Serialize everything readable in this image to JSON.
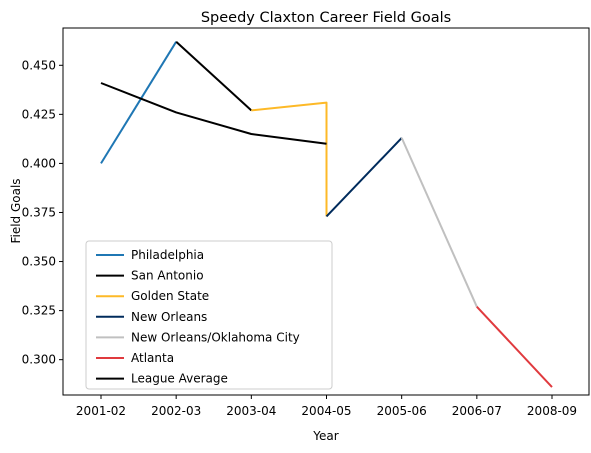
{
  "chart_data": {
    "type": "line",
    "title": "Speedy Claxton Career Field Goals",
    "xlabel": "Year",
    "ylabel": "Field Goals",
    "categories": [
      "2001-02",
      "2002-03",
      "2003-04",
      "2004-05",
      "2005-06",
      "2006-07",
      "2008-09"
    ],
    "ylim": [
      0.282,
      0.469
    ],
    "yticks": [
      "0.300",
      "0.325",
      "0.350",
      "0.375",
      "0.400",
      "0.425",
      "0.450"
    ],
    "grid": false,
    "legend_position": "lower-left",
    "series": [
      {
        "name": "Philadelphia",
        "color": "#1f77b4",
        "x": [
          "2001-02",
          "2002-03"
        ],
        "values": [
          0.4,
          0.462
        ]
      },
      {
        "name": "San Antonio",
        "color": "#000000",
        "x": [
          "2002-03",
          "2003-04"
        ],
        "values": [
          0.462,
          0.427
        ]
      },
      {
        "name": "Golden State",
        "color": "#fdb927",
        "x": [
          "2003-04",
          "2004-05",
          "2004-05"
        ],
        "values": [
          0.427,
          0.431,
          0.373
        ]
      },
      {
        "name": "New Orleans",
        "color": "#002b5c",
        "x": [
          "2004-05",
          "2005-06"
        ],
        "values": [
          0.373,
          0.413
        ]
      },
      {
        "name": "New Orleans/Oklahoma City",
        "color": "#c0c0c0",
        "x": [
          "2005-06",
          "2006-07"
        ],
        "values": [
          0.413,
          0.327
        ]
      },
      {
        "name": "Atlanta",
        "color": "#e03a3e",
        "x": [
          "2006-07",
          "2008-09"
        ],
        "values": [
          0.327,
          0.286
        ]
      },
      {
        "name": "League Average",
        "color": "#000000",
        "x": [
          "2001-02",
          "2002-03",
          "2003-04",
          "2004-05"
        ],
        "values": [
          0.441,
          0.426,
          0.415,
          0.41
        ]
      }
    ]
  }
}
